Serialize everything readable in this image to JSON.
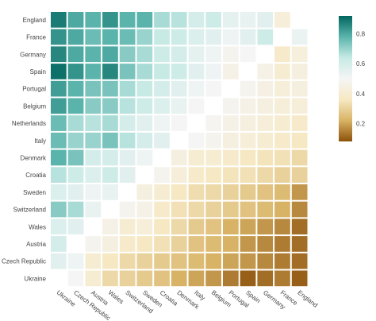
{
  "chart_data": {
    "type": "heatmap",
    "title": "",
    "xlabel": "",
    "ylabel": "",
    "x_categories": [
      "Ukraine",
      "Czech Republic",
      "Austria",
      "Wales",
      "Switzerland",
      "Sweden",
      "Croatia",
      "Denmark",
      "Italy",
      "Belgium",
      "Portugal",
      "Spain",
      "Germany",
      "France",
      "England"
    ],
    "y_categories": [
      "England",
      "France",
      "Germany",
      "Spain",
      "Portugal",
      "Belgium",
      "Netherlands",
      "Italy",
      "Denmark",
      "Croatia",
      "Sweden",
      "Switzerland",
      "Wales",
      "Austria",
      "Czech Republic",
      "Ukraine"
    ],
    "z": [
      [
        0.88,
        0.8,
        0.78,
        0.84,
        0.78,
        0.78,
        0.68,
        0.66,
        0.6,
        0.62,
        0.55,
        0.54,
        0.56,
        0.42,
        null
      ],
      [
        0.84,
        0.8,
        0.76,
        0.78,
        0.76,
        0.7,
        0.64,
        0.62,
        0.58,
        0.56,
        0.52,
        0.56,
        0.62,
        null,
        0.53
      ],
      [
        0.86,
        0.8,
        0.78,
        0.8,
        0.72,
        0.68,
        0.62,
        0.6,
        0.55,
        0.52,
        0.48,
        0.5,
        null,
        0.38,
        0.43
      ],
      [
        0.9,
        0.84,
        0.78,
        0.86,
        0.74,
        0.68,
        0.64,
        0.62,
        0.56,
        0.52,
        0.46,
        null,
        0.46,
        0.4,
        0.44
      ],
      [
        0.82,
        0.78,
        0.74,
        0.74,
        0.68,
        0.64,
        0.6,
        0.56,
        0.52,
        0.5,
        null,
        0.48,
        0.45,
        0.42,
        0.44
      ],
      [
        0.82,
        0.78,
        0.72,
        0.72,
        0.66,
        0.62,
        0.58,
        0.54,
        0.5,
        null,
        0.48,
        0.46,
        0.44,
        0.42,
        0.42
      ],
      [
        0.76,
        0.68,
        0.66,
        0.68,
        0.6,
        0.56,
        0.52,
        0.5,
        null,
        0.49,
        0.46,
        0.44,
        0.42,
        0.4,
        0.38
      ],
      [
        0.76,
        0.7,
        0.7,
        0.74,
        0.66,
        0.6,
        0.56,
        null,
        0.5,
        0.48,
        0.44,
        0.42,
        0.4,
        0.38,
        0.36
      ],
      [
        0.78,
        0.74,
        0.6,
        0.6,
        0.56,
        0.52,
        null,
        0.44,
        0.4,
        0.4,
        0.38,
        0.36,
        0.35,
        0.34,
        0.32
      ],
      [
        0.66,
        0.62,
        0.58,
        0.62,
        0.56,
        null,
        0.48,
        0.42,
        0.38,
        0.36,
        0.35,
        0.34,
        0.32,
        0.3,
        0.3
      ],
      [
        0.58,
        0.56,
        0.52,
        0.54,
        null,
        0.44,
        0.4,
        0.36,
        0.33,
        0.32,
        0.3,
        0.28,
        0.26,
        0.24,
        0.18
      ],
      [
        0.72,
        0.68,
        0.54,
        null,
        0.48,
        0.46,
        0.38,
        0.34,
        0.32,
        0.3,
        0.28,
        0.26,
        0.24,
        0.22,
        0.16
      ],
      [
        0.58,
        0.56,
        null,
        0.46,
        0.4,
        0.42,
        0.36,
        0.32,
        0.28,
        0.26,
        0.22,
        0.2,
        0.18,
        0.16,
        0.12
      ],
      [
        0.6,
        null,
        0.48,
        0.44,
        0.38,
        0.36,
        0.34,
        0.3,
        0.26,
        0.24,
        0.22,
        0.18,
        0.16,
        0.14,
        0.12
      ],
      [
        0.56,
        0.52,
        0.4,
        0.36,
        0.32,
        0.3,
        0.28,
        0.26,
        0.24,
        0.22,
        0.2,
        0.18,
        0.16,
        0.14,
        0.12
      ],
      [
        null,
        0.5,
        0.4,
        0.32,
        0.3,
        0.28,
        0.26,
        0.22,
        0.2,
        0.18,
        0.14,
        0.1,
        0.12,
        0.14,
        0.1
      ]
    ],
    "colorscale": [
      "#8c510a",
      "#d8b365",
      "#f6e8c3",
      "#f5f5f5",
      "#c7eae5",
      "#5ab4ac",
      "#01665e"
    ],
    "zmin": 0.08,
    "zmax": 0.92,
    "colorbar_ticks": [
      0.2,
      0.4,
      0.6,
      0.8
    ],
    "grid": false,
    "legend": "colorbar-right"
  }
}
